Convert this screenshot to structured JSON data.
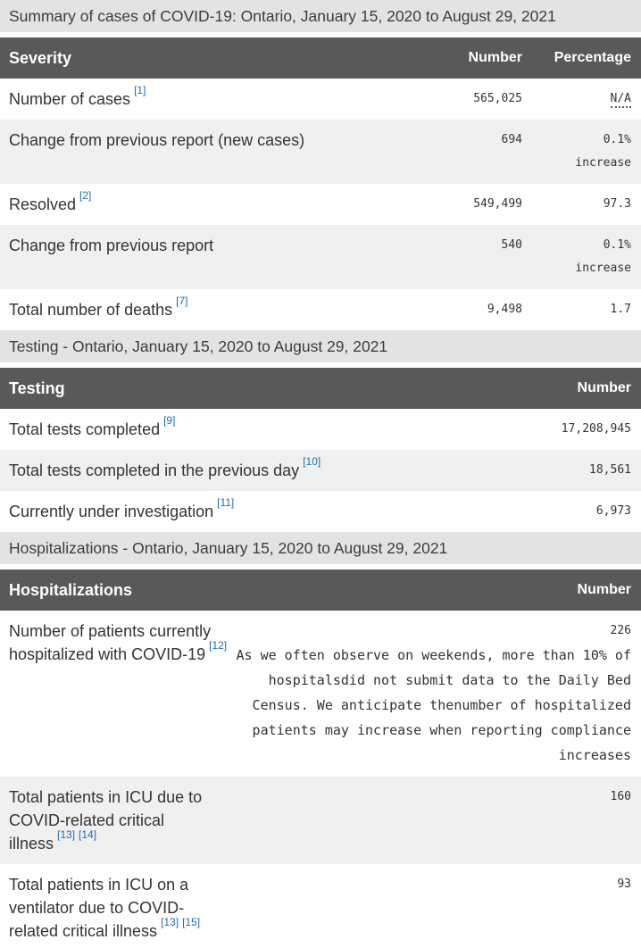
{
  "colors": {
    "caption_bg": "#e3e3e3",
    "table_header_bg": "#595959",
    "table_header_text": "#ffffff",
    "alt_row_bg": "#f0f0f0",
    "body_text": "#333333",
    "footnote_link": "#1f6bb5"
  },
  "severity_table": {
    "caption": "Summary of cases of COVID-19: Ontario, January 15, 2020 to August 29, 2021",
    "headers": {
      "col1": "Severity",
      "col2": "Number",
      "col3": "Percentage"
    },
    "rows": [
      {
        "label": "Number of cases",
        "footnotes": [
          "[1]"
        ],
        "number": "565,025",
        "percent_line1": "N/A",
        "percent_line2": ""
      },
      {
        "label": "Change from previous report (new cases)",
        "footnotes": [],
        "number": "694",
        "percent_line1": "0.1%",
        "percent_line2": "increase"
      },
      {
        "label": "Resolved",
        "footnotes": [
          "[2]"
        ],
        "number": "549,499",
        "percent_line1": "97.3",
        "percent_line2": ""
      },
      {
        "label": "Change from previous report",
        "footnotes": [],
        "number": "540",
        "percent_line1": "0.1%",
        "percent_line2": "increase"
      },
      {
        "label": "Total number of deaths",
        "footnotes": [
          "[7]"
        ],
        "number": "9,498",
        "percent_line1": "1.7",
        "percent_line2": ""
      }
    ]
  },
  "testing_table": {
    "caption": "Testing - Ontario, January 15, 2020 to August 29, 2021",
    "headers": {
      "col1": "Testing",
      "col2": "Number"
    },
    "rows": [
      {
        "label": "Total tests completed",
        "footnotes": [
          "[9]"
        ],
        "number": "17,208,945"
      },
      {
        "label": "Total tests completed in the previous day",
        "footnotes": [
          "[10]"
        ],
        "number": "18,561"
      },
      {
        "label": "Currently under investigation",
        "footnotes": [
          "[11]"
        ],
        "number": "6,973"
      }
    ]
  },
  "hospitalizations_table": {
    "caption": "Hospitalizations - Ontario, January 15, 2020 to August 29, 2021",
    "headers": {
      "col1": "Hospitalizations",
      "col2": "Number"
    },
    "rows": [
      {
        "label": "Number of patients currently hospitalized with COVID-19",
        "footnotes": [
          "[12]"
        ],
        "number": "226",
        "note": "As we often observe on weekends, more than 10% of hospitalsdid not submit data to the Daily Bed Census. We anticipate thenumber of hospitalized patients may increase when reporting compliance increases"
      },
      {
        "label": "Total patients in ICU due to COVID-related critical illness",
        "footnotes": [
          "[13]",
          "[14]"
        ],
        "number": "160",
        "note": ""
      },
      {
        "label": "Total patients in ICU on a ventilator due to COVID-related critical illness",
        "footnotes": [
          "[13]",
          "[15]"
        ],
        "number": "93",
        "note": ""
      }
    ]
  }
}
